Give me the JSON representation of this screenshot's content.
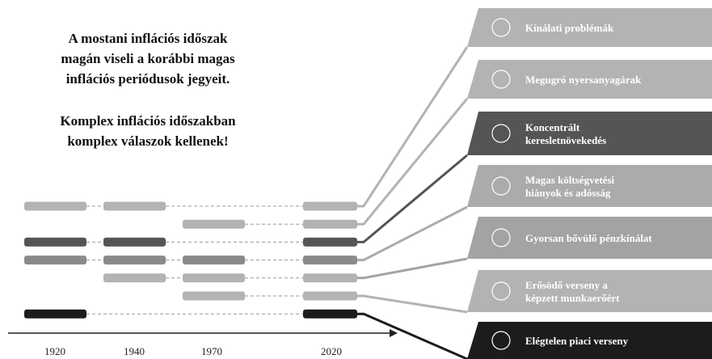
{
  "headline": [
    "A mostani inflációs időszak",
    "magán viseli a korábbi magas",
    "inflációs periódusok jegyeit."
  ],
  "subheadline": [
    "Komplex inflációs időszakban",
    "komplex válaszok kellenek!"
  ],
  "years": [
    "1920",
    "1940",
    "1970",
    "2020"
  ],
  "rows": [
    {
      "bars": [
        0,
        1,
        3
      ],
      "color": "#b3b3b3"
    },
    {
      "bars": [
        2,
        3
      ],
      "color": "#b3b3b3"
    },
    {
      "bars": [
        0,
        1,
        3
      ],
      "color": "#555555"
    },
    {
      "bars": [
        0,
        1,
        2,
        3
      ],
      "color": "#8a8a8a"
    },
    {
      "bars": [
        1,
        2,
        3
      ],
      "color": "#b3b3b3"
    },
    {
      "bars": [
        2,
        3
      ],
      "color": "#b3b3b3"
    },
    {
      "bars": [
        0,
        3
      ],
      "color": "#1c1c1c"
    }
  ],
  "panels": [
    {
      "lines": [
        "Kínálati problémák"
      ],
      "color": "#b3b3b3"
    },
    {
      "lines": [
        "Megugró nyersanyagárak"
      ],
      "color": "#b3b3b3"
    },
    {
      "lines": [
        "Koncentrált",
        "keresletnövekedés"
      ],
      "color": "#555555"
    },
    {
      "lines": [
        "Magas költségvetési",
        "hiányok és adósság"
      ],
      "color": "#ababab"
    },
    {
      "lines": [
        "Gyorsan bővülő pénzkínálat"
      ],
      "color": "#a3a3a3"
    },
    {
      "lines": [
        "Erősödő verseny a",
        "képzett munkaerőért"
      ],
      "color": "#b3b3b3"
    },
    {
      "lines": [
        "Elégtelen piaci verseny"
      ],
      "color": "#1c1c1c"
    }
  ]
}
